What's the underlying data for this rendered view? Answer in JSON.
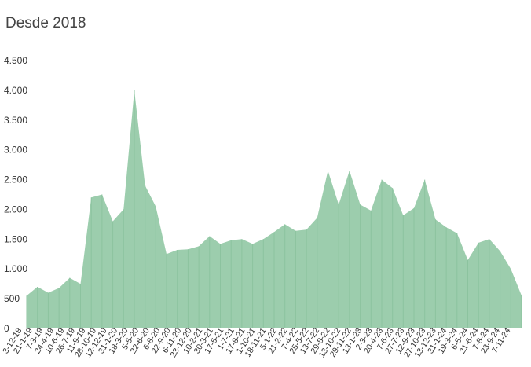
{
  "chart_data": {
    "type": "area",
    "title": "Desde 2018",
    "xlabel": "",
    "ylabel": "",
    "ylim": [
      0,
      4500
    ],
    "yticks": [
      0,
      500,
      1000,
      1500,
      2000,
      2500,
      3000,
      3500,
      4000,
      4500
    ],
    "ytick_labels": [
      "0",
      "500",
      "1.000",
      "1.500",
      "2.000",
      "2.500",
      "3.000",
      "3.500",
      "4.000",
      "4.500"
    ],
    "grid": false,
    "legend": "none",
    "color": "#9ccdad",
    "x_tick_labels": [
      "3-12-18",
      "21-1-19",
      "7-3-19",
      "24-4-19",
      "10-6-19",
      "26-7-19",
      "11-9-19",
      "28-10-19",
      "12-12-19",
      "31-1-20",
      "18-3-20",
      "5-5-20",
      "22-6-20",
      "6-8-20",
      "22-9-20",
      "6-11-20",
      "23-12-20",
      "10-2-21",
      "30-3-21",
      "17-5-21",
      "1-7-21",
      "17-8-21",
      "1-10-21",
      "18-11-21",
      "5-1-22",
      "21-2-22",
      "7-4-22",
      "25-5-22",
      "13-7-22",
      "29-8-22",
      "13-10-22",
      "29-11-22",
      "13-1-23",
      "2-3-23",
      "20-4-23",
      "7-6-23",
      "27-7-23",
      "12-9-23",
      "27-10-23",
      "13-12-23",
      "31-1-24",
      "19-3-24",
      "6-5-24",
      "21-6-24",
      "7-8-24",
      "23-9-24",
      "7-11-24"
    ],
    "series": [
      {
        "x": [
          "3-12-18",
          "21-1-19",
          "7-3-19",
          "24-4-19",
          "10-6-19",
          "26-7-19",
          "11-9-19",
          "28-10-19",
          "12-12-19",
          "31-1-20",
          "18-3-20",
          "5-5-20",
          "22-6-20",
          "6-8-20",
          "22-9-20",
          "6-11-20",
          "23-12-20",
          "10-2-21",
          "30-3-21",
          "17-5-21",
          "1-7-21",
          "17-8-21",
          "1-10-21",
          "18-11-21",
          "5-1-22",
          "21-2-22",
          "7-4-22",
          "25-5-22",
          "13-7-22",
          "29-8-22",
          "13-10-22",
          "29-11-22",
          "13-1-23",
          "2-3-23",
          "20-4-23",
          "7-6-23",
          "27-7-23",
          "12-9-23",
          "27-10-23",
          "13-12-23",
          "31-1-24",
          "19-3-24",
          "6-5-24",
          "21-6-24",
          "7-8-24",
          "23-9-24",
          "7-11-24"
        ],
        "values": [
          550,
          700,
          600,
          680,
          850,
          750,
          2200,
          2250,
          1800,
          2000,
          4000,
          2400,
          2050,
          1250,
          1320,
          1330,
          1380,
          1550,
          1420,
          1480,
          1500,
          1420,
          1500,
          1620,
          1750,
          1640,
          1660,
          1860,
          2650,
          2080,
          2650,
          2080,
          1980,
          2500,
          2360,
          1900,
          2020,
          2500,
          1830,
          1700,
          1600,
          1150,
          1440,
          1500,
          1300,
          1000,
          550
        ]
      }
    ]
  }
}
